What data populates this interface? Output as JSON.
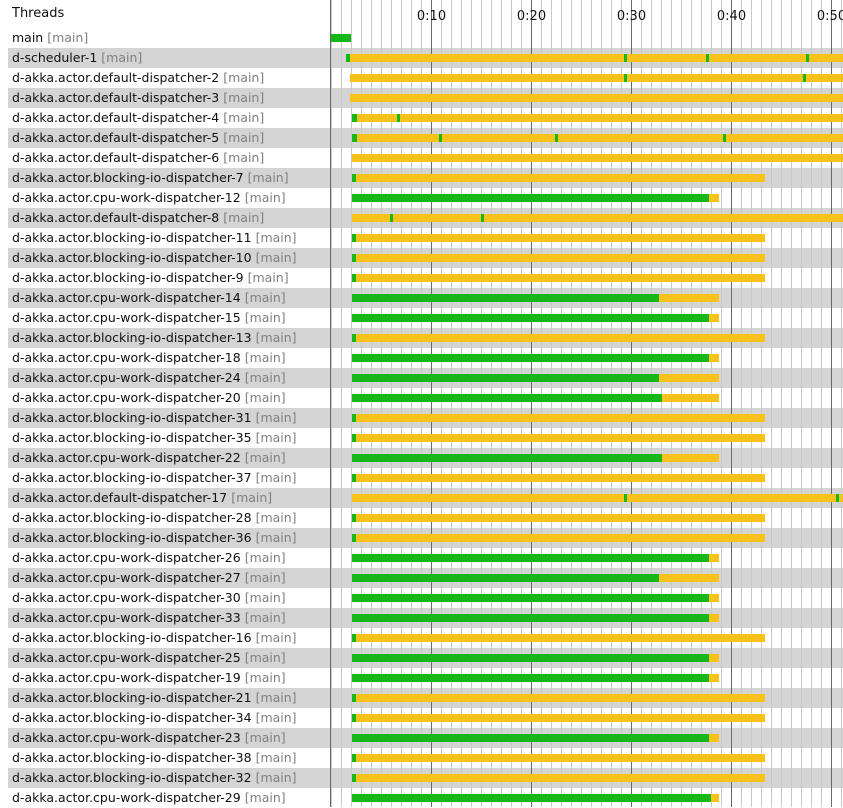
{
  "header": {
    "threads_label": "Threads"
  },
  "axis": {
    "tick_labels": [
      "0:10",
      "0:20",
      "0:30",
      "0:40",
      "0:50"
    ],
    "tick_seconds": [
      10,
      20,
      30,
      40,
      50
    ],
    "minor_step_seconds": 1
  },
  "colors": {
    "running": "#16b716",
    "waiting": "#f9c21a",
    "shade": "#d4d4d4",
    "major_grid": "#6a6a6a",
    "minor_grid": "#c8c8c8"
  },
  "threads": [
    {
      "name": "main",
      "group": "[main]",
      "segments": [
        {
          "s": 0.0,
          "e": 2.0,
          "state": "running"
        }
      ]
    },
    {
      "name": "d-scheduler-1",
      "group": "[main]",
      "segments": [
        {
          "s": 1.5,
          "e": 1.9,
          "state": "running"
        },
        {
          "s": 1.9,
          "e": 51.3,
          "state": "waiting"
        }
      ],
      "markers": [
        29.4,
        37.6,
        47.6,
        51.3
      ]
    },
    {
      "name": "d-akka.actor.default-dispatcher-2",
      "group": "[main]",
      "segments": [
        {
          "s": 1.9,
          "e": 51.3,
          "state": "waiting"
        }
      ],
      "markers": [
        29.4,
        47.3
      ]
    },
    {
      "name": "d-akka.actor.default-dispatcher-3",
      "group": "[main]",
      "segments": [
        {
          "s": 1.9,
          "e": 51.3,
          "state": "waiting"
        }
      ]
    },
    {
      "name": "d-akka.actor.default-dispatcher-4",
      "group": "[main]",
      "segments": [
        {
          "s": 2.1,
          "e": 2.6,
          "state": "running"
        },
        {
          "s": 2.6,
          "e": 51.3,
          "state": "waiting"
        }
      ],
      "markers": [
        6.7
      ]
    },
    {
      "name": "d-akka.actor.default-dispatcher-5",
      "group": "[main]",
      "segments": [
        {
          "s": 2.1,
          "e": 2.6,
          "state": "running"
        },
        {
          "s": 2.6,
          "e": 51.3,
          "state": "waiting"
        }
      ],
      "markers": [
        10.9,
        22.5,
        39.3
      ]
    },
    {
      "name": "d-akka.actor.default-dispatcher-6",
      "group": "[main]",
      "segments": [
        {
          "s": 2.1,
          "e": 51.3,
          "state": "waiting"
        }
      ]
    },
    {
      "name": "d-akka.actor.blocking-io-dispatcher-7",
      "group": "[main]",
      "segments": [
        {
          "s": 2.1,
          "e": 2.5,
          "state": "running"
        },
        {
          "s": 2.5,
          "e": 43.4,
          "state": "waiting"
        }
      ]
    },
    {
      "name": "d-akka.actor.cpu-work-dispatcher-12",
      "group": "[main]",
      "segments": [
        {
          "s": 2.1,
          "e": 37.8,
          "state": "running"
        },
        {
          "s": 37.8,
          "e": 38.8,
          "state": "waiting"
        }
      ]
    },
    {
      "name": "d-akka.actor.default-dispatcher-8",
      "group": "[main]",
      "segments": [
        {
          "s": 2.1,
          "e": 51.3,
          "state": "waiting"
        }
      ],
      "markers": [
        6.0,
        15.1
      ]
    },
    {
      "name": "d-akka.actor.blocking-io-dispatcher-11",
      "group": "[main]",
      "segments": [
        {
          "s": 2.1,
          "e": 2.5,
          "state": "running"
        },
        {
          "s": 2.5,
          "e": 43.4,
          "state": "waiting"
        }
      ]
    },
    {
      "name": "d-akka.actor.blocking-io-dispatcher-10",
      "group": "[main]",
      "segments": [
        {
          "s": 2.1,
          "e": 2.5,
          "state": "running"
        },
        {
          "s": 2.5,
          "e": 43.4,
          "state": "waiting"
        }
      ]
    },
    {
      "name": "d-akka.actor.blocking-io-dispatcher-9",
      "group": "[main]",
      "segments": [
        {
          "s": 2.1,
          "e": 2.5,
          "state": "running"
        },
        {
          "s": 2.5,
          "e": 43.4,
          "state": "waiting"
        }
      ]
    },
    {
      "name": "d-akka.actor.cpu-work-dispatcher-14",
      "group": "[main]",
      "segments": [
        {
          "s": 2.1,
          "e": 32.8,
          "state": "running"
        },
        {
          "s": 32.8,
          "e": 38.8,
          "state": "waiting"
        }
      ]
    },
    {
      "name": "d-akka.actor.cpu-work-dispatcher-15",
      "group": "[main]",
      "segments": [
        {
          "s": 2.1,
          "e": 37.8,
          "state": "running"
        },
        {
          "s": 37.8,
          "e": 38.8,
          "state": "waiting"
        }
      ]
    },
    {
      "name": "d-akka.actor.blocking-io-dispatcher-13",
      "group": "[main]",
      "segments": [
        {
          "s": 2.1,
          "e": 2.5,
          "state": "running"
        },
        {
          "s": 2.5,
          "e": 43.4,
          "state": "waiting"
        }
      ]
    },
    {
      "name": "d-akka.actor.cpu-work-dispatcher-18",
      "group": "[main]",
      "segments": [
        {
          "s": 2.1,
          "e": 37.8,
          "state": "running"
        },
        {
          "s": 37.8,
          "e": 38.8,
          "state": "waiting"
        }
      ]
    },
    {
      "name": "d-akka.actor.cpu-work-dispatcher-24",
      "group": "[main]",
      "segments": [
        {
          "s": 2.1,
          "e": 32.8,
          "state": "running"
        },
        {
          "s": 32.8,
          "e": 38.8,
          "state": "waiting"
        }
      ]
    },
    {
      "name": "d-akka.actor.cpu-work-dispatcher-20",
      "group": "[main]",
      "segments": [
        {
          "s": 2.1,
          "e": 33.1,
          "state": "running"
        },
        {
          "s": 33.1,
          "e": 38.8,
          "state": "waiting"
        }
      ]
    },
    {
      "name": "d-akka.actor.blocking-io-dispatcher-31",
      "group": "[main]",
      "segments": [
        {
          "s": 2.1,
          "e": 2.5,
          "state": "running"
        },
        {
          "s": 2.5,
          "e": 43.4,
          "state": "waiting"
        }
      ]
    },
    {
      "name": "d-akka.actor.blocking-io-dispatcher-35",
      "group": "[main]",
      "segments": [
        {
          "s": 2.1,
          "e": 2.5,
          "state": "running"
        },
        {
          "s": 2.5,
          "e": 43.4,
          "state": "waiting"
        }
      ]
    },
    {
      "name": "d-akka.actor.cpu-work-dispatcher-22",
      "group": "[main]",
      "segments": [
        {
          "s": 2.1,
          "e": 33.1,
          "state": "running"
        },
        {
          "s": 33.1,
          "e": 38.8,
          "state": "waiting"
        }
      ]
    },
    {
      "name": "d-akka.actor.blocking-io-dispatcher-37",
      "group": "[main]",
      "segments": [
        {
          "s": 2.1,
          "e": 2.5,
          "state": "running"
        },
        {
          "s": 2.5,
          "e": 43.4,
          "state": "waiting"
        }
      ]
    },
    {
      "name": "d-akka.actor.default-dispatcher-17",
      "group": "[main]",
      "segments": [
        {
          "s": 2.1,
          "e": 51.3,
          "state": "waiting"
        }
      ],
      "markers": [
        29.4,
        50.6
      ]
    },
    {
      "name": "d-akka.actor.blocking-io-dispatcher-28",
      "group": "[main]",
      "segments": [
        {
          "s": 2.1,
          "e": 2.5,
          "state": "running"
        },
        {
          "s": 2.5,
          "e": 43.4,
          "state": "waiting"
        }
      ]
    },
    {
      "name": "d-akka.actor.blocking-io-dispatcher-36",
      "group": "[main]",
      "segments": [
        {
          "s": 2.1,
          "e": 2.5,
          "state": "running"
        },
        {
          "s": 2.5,
          "e": 43.4,
          "state": "waiting"
        }
      ]
    },
    {
      "name": "d-akka.actor.cpu-work-dispatcher-26",
      "group": "[main]",
      "segments": [
        {
          "s": 2.1,
          "e": 37.8,
          "state": "running"
        },
        {
          "s": 37.8,
          "e": 38.8,
          "state": "waiting"
        }
      ]
    },
    {
      "name": "d-akka.actor.cpu-work-dispatcher-27",
      "group": "[main]",
      "segments": [
        {
          "s": 2.1,
          "e": 32.8,
          "state": "running"
        },
        {
          "s": 32.8,
          "e": 38.8,
          "state": "waiting"
        }
      ]
    },
    {
      "name": "d-akka.actor.cpu-work-dispatcher-30",
      "group": "[main]",
      "segments": [
        {
          "s": 2.1,
          "e": 37.8,
          "state": "running"
        },
        {
          "s": 37.8,
          "e": 38.8,
          "state": "waiting"
        }
      ]
    },
    {
      "name": "d-akka.actor.cpu-work-dispatcher-33",
      "group": "[main]",
      "segments": [
        {
          "s": 2.1,
          "e": 37.8,
          "state": "running"
        },
        {
          "s": 37.8,
          "e": 38.8,
          "state": "waiting"
        }
      ]
    },
    {
      "name": "d-akka.actor.blocking-io-dispatcher-16",
      "group": "[main]",
      "segments": [
        {
          "s": 2.1,
          "e": 2.5,
          "state": "running"
        },
        {
          "s": 2.5,
          "e": 43.4,
          "state": "waiting"
        }
      ]
    },
    {
      "name": "d-akka.actor.cpu-work-dispatcher-25",
      "group": "[main]",
      "segments": [
        {
          "s": 2.1,
          "e": 37.8,
          "state": "running"
        },
        {
          "s": 37.8,
          "e": 38.8,
          "state": "waiting"
        }
      ]
    },
    {
      "name": "d-akka.actor.cpu-work-dispatcher-19",
      "group": "[main]",
      "segments": [
        {
          "s": 2.1,
          "e": 37.8,
          "state": "running"
        },
        {
          "s": 37.8,
          "e": 38.8,
          "state": "waiting"
        }
      ]
    },
    {
      "name": "d-akka.actor.blocking-io-dispatcher-21",
      "group": "[main]",
      "segments": [
        {
          "s": 2.1,
          "e": 2.5,
          "state": "running"
        },
        {
          "s": 2.5,
          "e": 43.4,
          "state": "waiting"
        }
      ]
    },
    {
      "name": "d-akka.actor.blocking-io-dispatcher-34",
      "group": "[main]",
      "segments": [
        {
          "s": 2.1,
          "e": 2.5,
          "state": "running"
        },
        {
          "s": 2.5,
          "e": 43.4,
          "state": "waiting"
        }
      ]
    },
    {
      "name": "d-akka.actor.cpu-work-dispatcher-23",
      "group": "[main]",
      "segments": [
        {
          "s": 2.1,
          "e": 37.8,
          "state": "running"
        },
        {
          "s": 37.8,
          "e": 38.8,
          "state": "waiting"
        }
      ]
    },
    {
      "name": "d-akka.actor.blocking-io-dispatcher-38",
      "group": "[main]",
      "segments": [
        {
          "s": 2.1,
          "e": 2.5,
          "state": "running"
        },
        {
          "s": 2.5,
          "e": 43.4,
          "state": "waiting"
        }
      ]
    },
    {
      "name": "d-akka.actor.blocking-io-dispatcher-32",
      "group": "[main]",
      "segments": [
        {
          "s": 2.1,
          "e": 2.5,
          "state": "running"
        },
        {
          "s": 2.5,
          "e": 43.4,
          "state": "waiting"
        }
      ]
    },
    {
      "name": "d-akka.actor.cpu-work-dispatcher-29",
      "group": "[main]",
      "segments": [
        {
          "s": 2.1,
          "e": 38.0,
          "state": "running"
        },
        {
          "s": 38.0,
          "e": 38.8,
          "state": "waiting"
        }
      ]
    }
  ]
}
